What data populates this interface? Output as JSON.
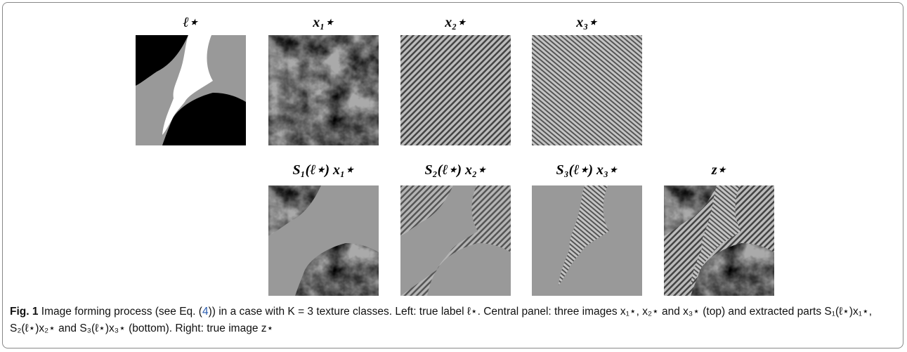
{
  "top_row": {
    "titles": [
      "ℓ⋆",
      "x₁⋆",
      "x₂⋆",
      "x₃⋆"
    ]
  },
  "bottom_row": {
    "titles": [
      "S₁(ℓ⋆) x₁⋆",
      "S₂(ℓ⋆) x₂⋆",
      "S₃(ℓ⋆) x₃⋆",
      "z⋆"
    ]
  },
  "caption": {
    "label": "Fig. 1",
    "text_before_ref": "Image forming process (see Eq. (",
    "ref": "4",
    "text_after_ref": ")) in a case with K = 3 texture classes. Left: true label ℓ⋆. Central panel: three images x₁⋆, x₂⋆ and x₃⋆ (top) and extracted parts S₁(ℓ⋆)x₁⋆, S₂(ℓ⋆)x₂⋆ and S₃(ℓ⋆)x₃⋆ (bottom). Right: true image z⋆"
  }
}
